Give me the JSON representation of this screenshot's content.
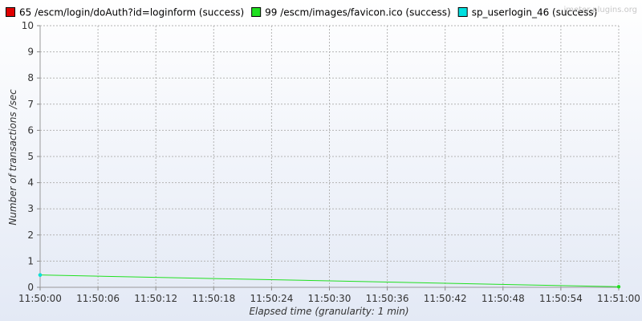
{
  "watermark": "jmeter-plugins.org",
  "colors": {
    "background_top": "#ffffff",
    "background_bottom": "#e3e9f5",
    "grid": "#b4b4b4",
    "axis_text": "#333333"
  },
  "chart_data": {
    "type": "line",
    "xlabel": "Elapsed time (granularity: 1 min)",
    "ylabel": "Number of transactions /sec",
    "ylim": [
      0,
      10
    ],
    "yticks": [
      "0",
      "1",
      "2",
      "3",
      "4",
      "5",
      "6",
      "7",
      "8",
      "9",
      "10"
    ],
    "xlim": [
      "11:50:00",
      "11:51:00"
    ],
    "xticks": [
      "11:50:00",
      "11:50:06",
      "11:50:12",
      "11:50:18",
      "11:50:24",
      "11:50:30",
      "11:50:36",
      "11:50:42",
      "11:50:48",
      "11:50:54",
      "11:51:00"
    ],
    "grid": true,
    "legend_position": "top",
    "series": [
      {
        "name": "65 /escm/login/doAuth?id=loginform (success)",
        "color": "#e00000",
        "points": []
      },
      {
        "name": "99 /escm/images/favicon.ico (success)",
        "color": "#20e020",
        "points": [
          {
            "x": "11:50:00",
            "y": 0.47
          },
          {
            "x": "11:51:00",
            "y": 0.02
          }
        ]
      },
      {
        "name": "sp_userlogin_46 (success)",
        "color": "#00e0e0",
        "points": [
          {
            "x": "11:50:00",
            "y": 0.47
          }
        ]
      }
    ]
  }
}
